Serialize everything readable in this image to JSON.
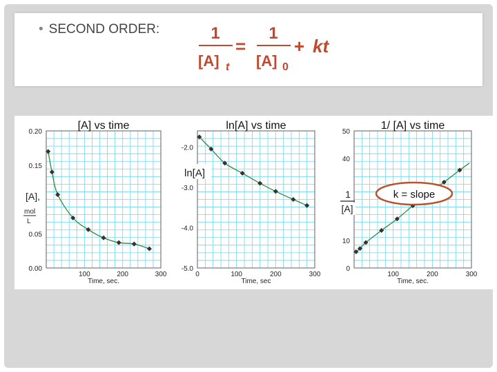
{
  "header": {
    "bullet_text": "SECOND ORDER:",
    "formula": {
      "lhs_num": "1",
      "lhs_den": "[A]",
      "lhs_sub": "t",
      "eq": "=",
      "rhs_num": "1",
      "rhs_den": "[A]",
      "rhs_sub": "0",
      "plus": "+",
      "term": "kt"
    }
  },
  "chart_data": [
    {
      "type": "line",
      "title": "[A]  vs time",
      "xlabel": "Time, sec.",
      "ylabel_lines": [
        "[A],",
        "mol",
        "L"
      ],
      "xlim": [
        0,
        300
      ],
      "ylim": [
        0.0,
        0.2
      ],
      "y_tick_labels": [
        "0.20",
        "0.15",
        "0.05",
        "0.00"
      ],
      "y_tick_values": [
        0.2,
        0.15,
        0.05,
        0.0
      ],
      "x_tick_labels": [
        "100",
        "200",
        "300"
      ],
      "x_tick_values": [
        100,
        200,
        300
      ],
      "x": [
        5,
        15,
        30,
        70,
        110,
        150,
        190,
        230,
        270
      ],
      "y": [
        0.17,
        0.14,
        0.107,
        0.073,
        0.056,
        0.044,
        0.037,
        0.035,
        0.028
      ]
    },
    {
      "type": "line",
      "title": "ln[A] vs time",
      "xlabel": "Time, sec",
      "ylabel_lines": [
        "ln[A]"
      ],
      "xlim": [
        0,
        300
      ],
      "ylim": [
        -5.0,
        -1.6
      ],
      "y_tick_labels": [
        "-2.0",
        "-3.0",
        "-4.0",
        "-5.0"
      ],
      "y_tick_values": [
        -2.0,
        -3.0,
        -4.0,
        -5.0
      ],
      "x_tick_labels": [
        "0",
        "100",
        "200",
        "300"
      ],
      "x_tick_values": [
        0,
        100,
        200,
        300
      ],
      "x": [
        5,
        35,
        70,
        115,
        160,
        200,
        245,
        280
      ],
      "y": [
        -1.75,
        -2.05,
        -2.4,
        -2.65,
        -2.9,
        -3.1,
        -3.3,
        -3.45
      ]
    },
    {
      "type": "line",
      "title": "1/ [A] vs time",
      "xlabel": "Time, sec.",
      "ylabel_lines": [
        "1",
        "[A]"
      ],
      "xlim": [
        0,
        300
      ],
      "ylim": [
        0,
        50
      ],
      "y_tick_labels": [
        "50",
        "40",
        "10",
        "0"
      ],
      "y_tick_values": [
        50,
        40,
        10,
        0
      ],
      "x_tick_labels": [
        "100",
        "200",
        "300"
      ],
      "x_tick_values": [
        100,
        200,
        300
      ],
      "x": [
        5,
        15,
        30,
        70,
        110,
        150,
        190,
        230,
        270
      ],
      "y": [
        5.9,
        7.1,
        9.3,
        13.7,
        17.9,
        22.7,
        27.0,
        31.3,
        35.7
      ],
      "annotation": "k = slope"
    }
  ],
  "colors": {
    "grid": "#6fd5f0",
    "frame": "#777777",
    "line": "#2e8b3c",
    "point": "#333333",
    "annotation_ring": "#b9532d"
  }
}
